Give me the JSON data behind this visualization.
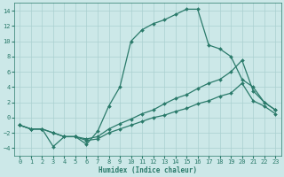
{
  "xlabel": "Humidex (Indice chaleur)",
  "xlim": [
    -0.5,
    23.5
  ],
  "ylim": [
    -5,
    15
  ],
  "yticks": [
    -4,
    -2,
    0,
    2,
    4,
    6,
    8,
    10,
    12,
    14
  ],
  "xticks": [
    0,
    1,
    2,
    3,
    4,
    5,
    6,
    7,
    8,
    9,
    10,
    11,
    12,
    13,
    14,
    15,
    16,
    17,
    18,
    19,
    20,
    21,
    22,
    23
  ],
  "bg_color": "#cce8e8",
  "grid_color": "#aad0d0",
  "line_color": "#2a7a6a",
  "line1_x": [
    0,
    1,
    2,
    3,
    4,
    5,
    6,
    7,
    8,
    9,
    10,
    11,
    12,
    13,
    14,
    15,
    16,
    17,
    18,
    19,
    20,
    21,
    22,
    23
  ],
  "line1_y": [
    -1,
    -1.5,
    -1.5,
    -3.8,
    -2.5,
    -2.5,
    -3.5,
    -1.8,
    1.5,
    4.0,
    10.0,
    11.5,
    12.3,
    12.8,
    13.5,
    14.2,
    14.2,
    9.5,
    9.0,
    8.0,
    5.0,
    4.0,
    2.0,
    1.0
  ],
  "line2_x": [
    0,
    1,
    2,
    3,
    4,
    5,
    6,
    7,
    8,
    9,
    10,
    11,
    12,
    13,
    14,
    15,
    16,
    17,
    18,
    19,
    20,
    21,
    22,
    23
  ],
  "line2_y": [
    -1,
    -1.5,
    -1.5,
    -2.0,
    -2.5,
    -2.5,
    -2.8,
    -2.5,
    -1.5,
    -0.8,
    -0.2,
    0.5,
    1.0,
    1.8,
    2.5,
    3.0,
    3.8,
    4.5,
    5.0,
    6.0,
    7.5,
    3.5,
    2.0,
    1.0
  ],
  "line3_x": [
    0,
    1,
    2,
    3,
    4,
    5,
    6,
    7,
    8,
    9,
    10,
    11,
    12,
    13,
    14,
    15,
    16,
    17,
    18,
    19,
    20,
    21,
    22,
    23
  ],
  "line3_y": [
    -1,
    -1.5,
    -1.5,
    -2.0,
    -2.5,
    -2.5,
    -3.0,
    -2.8,
    -2.0,
    -1.5,
    -1.0,
    -0.5,
    0.0,
    0.3,
    0.8,
    1.2,
    1.8,
    2.2,
    2.8,
    3.2,
    4.5,
    2.2,
    1.5,
    0.5
  ],
  "marker": "D",
  "marker_size": 2.0,
  "linewidth": 0.9
}
